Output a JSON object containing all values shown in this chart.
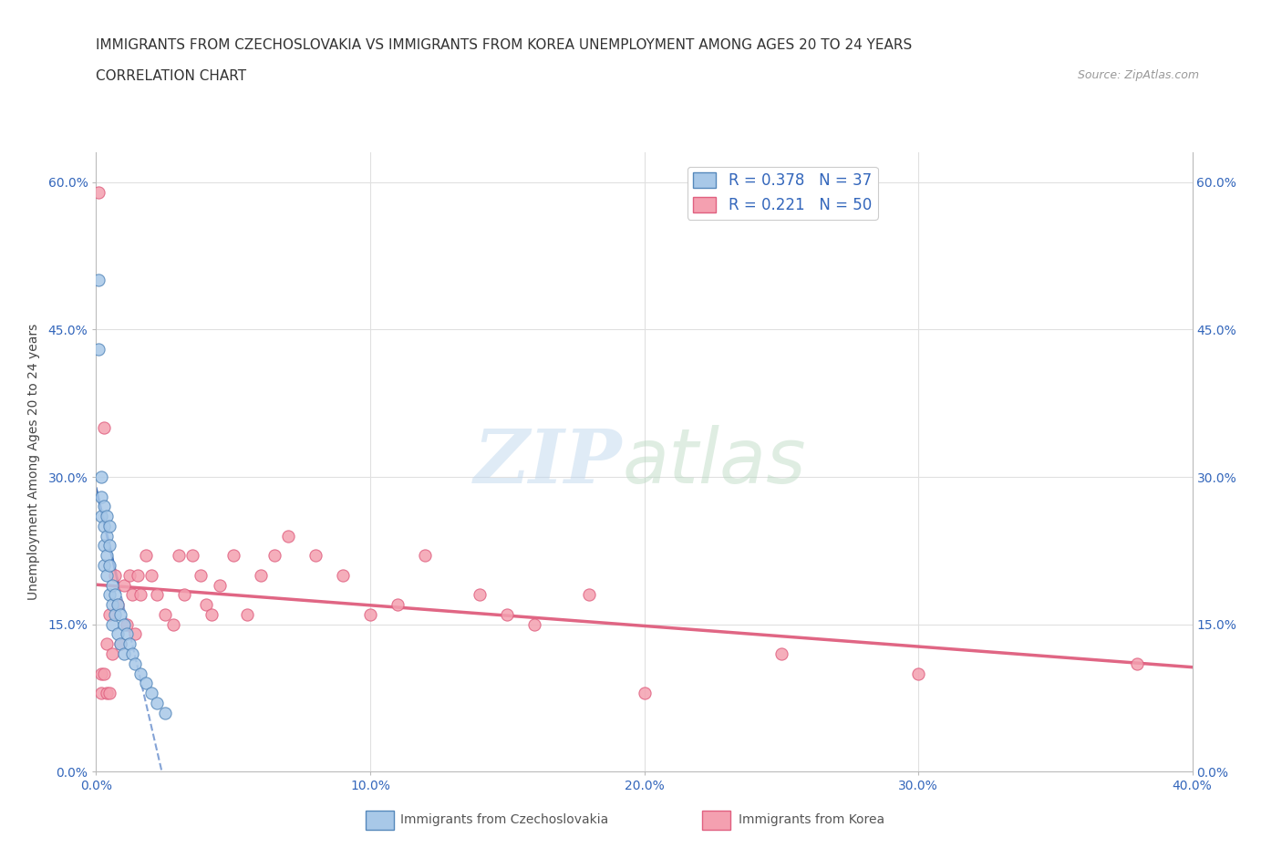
{
  "title_line1": "IMMIGRANTS FROM CZECHOSLOVAKIA VS IMMIGRANTS FROM KOREA UNEMPLOYMENT AMONG AGES 20 TO 24 YEARS",
  "title_line2": "CORRELATION CHART",
  "source": "Source: ZipAtlas.com",
  "ylabel": "Unemployment Among Ages 20 to 24 years",
  "xlim": [
    0.0,
    0.4
  ],
  "ylim": [
    0.0,
    0.63
  ],
  "xticks": [
    0.0,
    0.1,
    0.2,
    0.3,
    0.4
  ],
  "yticks": [
    0.0,
    0.15,
    0.3,
    0.45,
    0.6
  ],
  "czecho_color": "#A8C8E8",
  "czecho_edge": "#5588BB",
  "korea_color": "#F4A0B0",
  "korea_edge": "#E06080",
  "czecho_line_color": "#3366BB",
  "korea_line_color": "#DD5577",
  "czecho_R": 0.378,
  "czecho_N": 37,
  "korea_R": 0.221,
  "korea_N": 50,
  "watermark_zip_color": "#C0D8EE",
  "watermark_atlas_color": "#B8D8C0",
  "tick_color": "#3366BB",
  "background_color": "#FFFFFF",
  "grid_color": "#E0E0E0",
  "czecho_x": [
    0.001,
    0.001,
    0.002,
    0.002,
    0.002,
    0.003,
    0.003,
    0.003,
    0.003,
    0.004,
    0.004,
    0.004,
    0.004,
    0.005,
    0.005,
    0.005,
    0.005,
    0.006,
    0.006,
    0.006,
    0.007,
    0.007,
    0.008,
    0.008,
    0.009,
    0.009,
    0.01,
    0.01,
    0.011,
    0.012,
    0.013,
    0.014,
    0.016,
    0.018,
    0.02,
    0.022,
    0.025
  ],
  "czecho_y": [
    0.5,
    0.43,
    0.3,
    0.28,
    0.26,
    0.27,
    0.25,
    0.23,
    0.21,
    0.26,
    0.24,
    0.22,
    0.2,
    0.25,
    0.23,
    0.21,
    0.18,
    0.19,
    0.17,
    0.15,
    0.18,
    0.16,
    0.17,
    0.14,
    0.16,
    0.13,
    0.15,
    0.12,
    0.14,
    0.13,
    0.12,
    0.11,
    0.1,
    0.09,
    0.08,
    0.07,
    0.06
  ],
  "korea_x": [
    0.001,
    0.002,
    0.002,
    0.003,
    0.003,
    0.004,
    0.004,
    0.005,
    0.005,
    0.006,
    0.007,
    0.008,
    0.009,
    0.01,
    0.011,
    0.012,
    0.013,
    0.014,
    0.015,
    0.016,
    0.018,
    0.02,
    0.022,
    0.025,
    0.028,
    0.03,
    0.032,
    0.035,
    0.038,
    0.04,
    0.042,
    0.045,
    0.05,
    0.055,
    0.06,
    0.065,
    0.07,
    0.08,
    0.09,
    0.1,
    0.11,
    0.12,
    0.14,
    0.15,
    0.16,
    0.18,
    0.2,
    0.25,
    0.3,
    0.38
  ],
  "korea_y": [
    0.59,
    0.1,
    0.08,
    0.35,
    0.1,
    0.13,
    0.08,
    0.16,
    0.08,
    0.12,
    0.2,
    0.17,
    0.13,
    0.19,
    0.15,
    0.2,
    0.18,
    0.14,
    0.2,
    0.18,
    0.22,
    0.2,
    0.18,
    0.16,
    0.15,
    0.22,
    0.18,
    0.22,
    0.2,
    0.17,
    0.16,
    0.19,
    0.22,
    0.16,
    0.2,
    0.22,
    0.24,
    0.22,
    0.2,
    0.16,
    0.17,
    0.22,
    0.18,
    0.16,
    0.15,
    0.18,
    0.08,
    0.12,
    0.1,
    0.11
  ],
  "title_fontsize": 11,
  "axis_fontsize": 10,
  "legend_fontsize": 12,
  "source_fontsize": 9
}
